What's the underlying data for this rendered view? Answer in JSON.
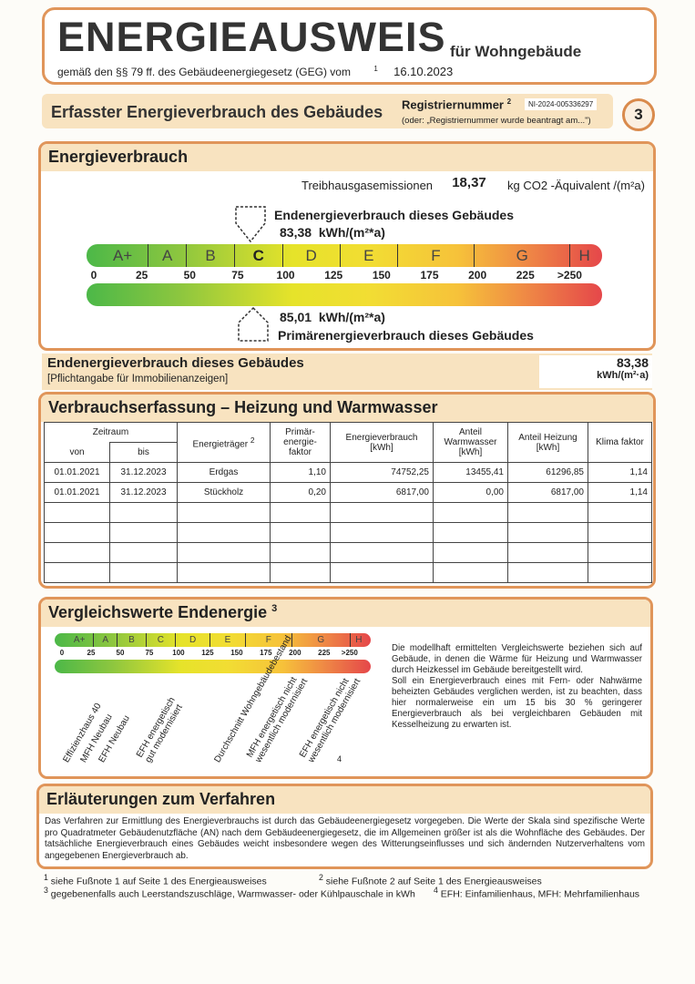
{
  "header": {
    "title": "ENERGIEAUSWEIS",
    "subtitle": "für Wohngebäude",
    "law": "gemäß den §§ 79 ff. des Gebäudeenergiegesetz (GEG) vom",
    "law_footnote": "1",
    "date": "16.10.2023"
  },
  "section": {
    "title": "Erfasster Energieverbrauch des Gebäudes",
    "reg_label": "Registriernummer",
    "reg_sup": "2",
    "reg_number": "NI-2024-005336297",
    "reg_note": "(oder: „Registriernummer wurde beantragt am...\")",
    "page": "3"
  },
  "energy": {
    "title": "Energieverbrauch",
    "ghg_label": "Treibhausgasemissionen",
    "ghg_value": "18,37",
    "ghg_unit": "kg CO2 -Äquivalent /(m²a)",
    "end_label": "Endenergieverbrauch dieses Gebäudes",
    "end_value": "83,38",
    "end_unit": "kWh/(m²*a)",
    "prim_value": "85,01",
    "prim_unit": "kWh/(m²*a)",
    "prim_label": "Primärenergieverbrauch dieses Gebäudes",
    "end_marker": 83.38,
    "prim_marker": 85.01,
    "classes": [
      "A+",
      "A",
      "B",
      "C",
      "D",
      "E",
      "F",
      "G",
      "H"
    ],
    "ticks": [
      "0",
      "25",
      "50",
      "75",
      "100",
      "125",
      "150",
      "175",
      "200",
      "225",
      ">250"
    ],
    "current_class": "C"
  },
  "pflicht": {
    "title": "Endenergieverbrauch dieses Gebäudes",
    "note": "[Pflichtangabe für Immobilienanzeigen]",
    "value": "83,38",
    "unit": "kWh/(m²·a)"
  },
  "table": {
    "title": "Verbrauchserfassung – Heizung und Warmwasser",
    "zeitraum": "Zeitraum",
    "von": "von",
    "bis": "bis",
    "energietraeger": "Energieträger",
    "et_sup": "2",
    "primaer": "Primär- energie- faktor",
    "verbrauch": "Energieverbrauch [kWh]",
    "warmwasser": "Anteil Warmwasser [kWh]",
    "heizung": "Anteil Heizung [kWh]",
    "klima": "Klima faktor",
    "rows": [
      [
        "01.01.2021",
        "31.12.2023",
        "Erdgas",
        "1,10",
        "74752,25",
        "13455,41",
        "61296,85",
        "1,14"
      ],
      [
        "01.01.2021",
        "31.12.2023",
        "Stückholz",
        "0,20",
        "6817,00",
        "0,00",
        "6817,00",
        "1,14"
      ]
    ]
  },
  "compare": {
    "title": "Vergleichswerte Endenergie",
    "sup": "3",
    "labels": [
      "Effizienzhaus 40",
      "MFH Neubau",
      "EFH Neubau",
      "EFH energetisch gut modernisiert",
      "Durchschnitt Wohngebäudebestand",
      "MFH energetisch nicht wesentlich modernisiert",
      "EFH energetisch nicht wesentlich modernisiert"
    ],
    "footnote": "4",
    "text1": "Die modellhaft ermittelten Vergleichswerte beziehen sich auf Gebäude, in denen die Wärme für Heizung und Warmwasser durch Heizkessel im Gebäude bereitgestellt wird.",
    "text2": "Soll ein Energieverbrauch eines mit Fern- oder Nahwärme beheizten Gebäudes verglichen werden, ist zu beachten, dass hier normalerweise ein um 15 bis 30 % geringerer Energieverbrauch als bei vergleichbaren Gebäuden mit Kesselheizung zu erwarten ist."
  },
  "explain": {
    "title": "Erläuterungen zum Verfahren",
    "text": "Das Verfahren zur Ermittlung des Energieverbrauchs ist durch das Gebäudeenergiegesetz vorgegeben. Die Werte der Skala sind spezifische Werte pro Quadratmeter Gebäudenutzfläche (AN) nach dem Gebäudeenergiegesetz, die im Allgemeinen größer ist als die Wohnfläche des Gebäudes. Der tatsächliche Energieverbrauch eines Gebäudes weicht insbesondere wegen des Witterungseinflusses und sich ändernden Nutzerverhaltens vom angegebenen Energieverbrauch ab."
  },
  "footnotes": [
    "siehe Fußnote 1 auf Seite 1 des Energieausweises",
    "siehe Fußnote 2 auf Seite 1 des Energieausweises",
    "gegebenenfalls auch Leerstandszuschläge, Warmwasser- oder Kühlpauschale in kWh",
    "EFH: Einfamilienhaus, MFH: Mehrfamilienhaus"
  ]
}
